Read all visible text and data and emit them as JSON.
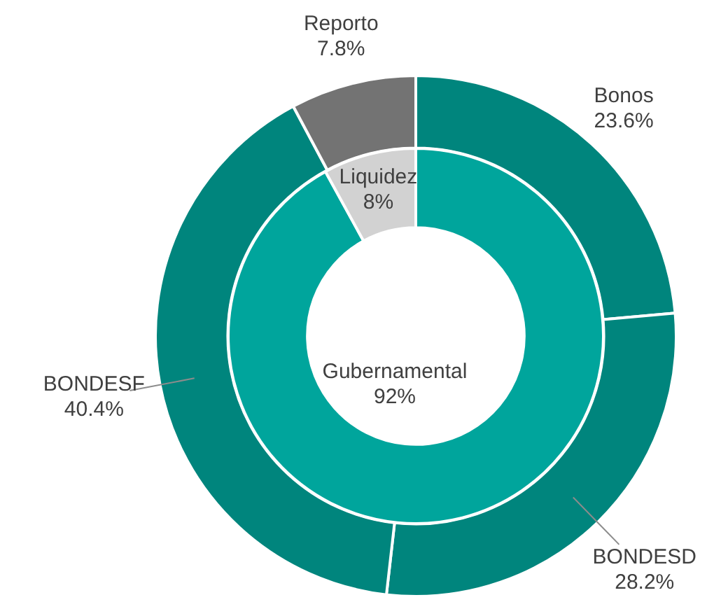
{
  "chart_data": [
    {
      "type": "donut",
      "categories": [
        "Bonos",
        "BONDESD",
        "BONDESF",
        "Reporto"
      ],
      "values": [
        23.6,
        28.2,
        40.4,
        7.8
      ],
      "colors": [
        "#00857d",
        "#00857d",
        "#00857d",
        "#737373"
      ],
      "value_labels": [
        "23.6%",
        "28.2%",
        "40.4%",
        "7.8%"
      ]
    },
    {
      "type": "donut",
      "categories": [
        "Gubernamental",
        "Liquidez"
      ],
      "values": [
        92,
        8
      ],
      "colors": [
        "#00a59c",
        "#d2d2d2"
      ],
      "value_labels": [
        "92%",
        "8%"
      ]
    }
  ]
}
